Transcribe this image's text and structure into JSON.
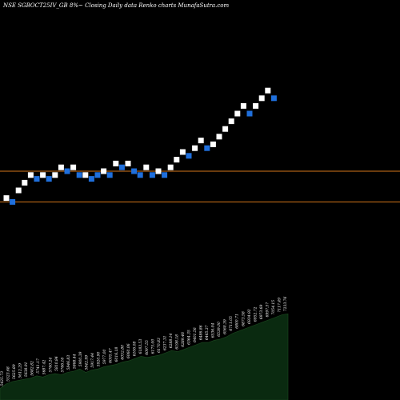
{
  "header": {
    "title": "NSE SGBOCT25IV_GB 8%~  Closing Daily data  Renko  charts MunafaSutra.com"
  },
  "colors": {
    "background": "#000000",
    "up_brick": "#ffffff",
    "down_brick": "#1f6fdc",
    "level_line": "#d4761a",
    "volume_fill": "#0a2a10"
  },
  "chart_data": [
    {
      "type": "renko",
      "title": "NSE SGBOCT25IV_GB 8%~ Closing Daily data Renko charts MunafaSutra.com",
      "ylim": [
        0,
        100
      ],
      "grid": false,
      "horizontal_levels": [
        57.5,
        49.5
      ],
      "bricks": [
        {
          "dir": "up",
          "y": 50.5
        },
        {
          "dir": "down",
          "y": 49.5
        },
        {
          "dir": "up",
          "y": 52.5
        },
        {
          "dir": "up",
          "y": 54.5
        },
        {
          "dir": "up",
          "y": 56.5
        },
        {
          "dir": "down",
          "y": 55.5
        },
        {
          "dir": "up",
          "y": 56.5
        },
        {
          "dir": "down",
          "y": 55.5
        },
        {
          "dir": "up",
          "y": 56.5
        },
        {
          "dir": "up",
          "y": 58.5
        },
        {
          "dir": "down",
          "y": 57.5
        },
        {
          "dir": "up",
          "y": 58.5
        },
        {
          "dir": "down",
          "y": 56.5
        },
        {
          "dir": "up",
          "y": 56.5
        },
        {
          "dir": "down",
          "y": 55.5
        },
        {
          "dir": "down",
          "y": 56.5
        },
        {
          "dir": "up",
          "y": 57.5
        },
        {
          "dir": "down",
          "y": 56.5
        },
        {
          "dir": "up",
          "y": 59.5
        },
        {
          "dir": "down",
          "y": 58.5
        },
        {
          "dir": "up",
          "y": 59.5
        },
        {
          "dir": "down",
          "y": 57.5
        },
        {
          "dir": "down",
          "y": 56.5
        },
        {
          "dir": "up",
          "y": 58.5
        },
        {
          "dir": "down",
          "y": 56.5
        },
        {
          "dir": "up",
          "y": 57.5
        },
        {
          "dir": "down",
          "y": 56.5
        },
        {
          "dir": "up",
          "y": 58.5
        },
        {
          "dir": "up",
          "y": 60.5
        },
        {
          "dir": "up",
          "y": 62.5
        },
        {
          "dir": "down",
          "y": 61.5
        },
        {
          "dir": "up",
          "y": 63.5
        },
        {
          "dir": "up",
          "y": 65.5
        },
        {
          "dir": "down",
          "y": 63.5
        },
        {
          "dir": "up",
          "y": 64.5
        },
        {
          "dir": "up",
          "y": 66.5
        },
        {
          "dir": "up",
          "y": 68.5
        },
        {
          "dir": "up",
          "y": 70.5
        },
        {
          "dir": "up",
          "y": 72.5
        },
        {
          "dir": "up",
          "y": 74.5
        },
        {
          "dir": "down",
          "y": 72.5
        },
        {
          "dir": "up",
          "y": 74.5
        },
        {
          "dir": "up",
          "y": 76.5
        },
        {
          "dir": "up",
          "y": 78.5
        },
        {
          "dir": "down",
          "y": 76.5
        }
      ],
      "volume_labels": [
        "5425.73",
        "5523.68",
        "5625.89",
        "5612.29",
        "5638.91",
        "5682.82",
        "5741.17",
        "5687.42",
        "5760.24",
        "5810.84",
        "5766.16",
        "5846.83",
        "5868.44",
        "5900.39",
        "5842.99",
        "5917.44",
        "5920.90",
        "5977.00",
        "6005.47",
        "6016.18",
        "6052.80",
        "6060.06",
        "6106.08",
        "6183.53",
        "6097.55",
        "6175.00",
        "6170.83",
        "6237.31",
        "6288.14",
        "6198.18",
        "6289.46",
        "6364.35",
        "6401.56",
        "6486.86",
        "6465.37",
        "6536.04",
        "6539.00",
        "6560.39",
        "6711.05",
        "6800.71",
        "6873.58",
        "6934.92",
        "6952.72",
        "6973.69",
        "6997.57",
        "7054.15",
        "7117.49",
        "7233.76"
      ],
      "volume_values": [
        10,
        14,
        16,
        17,
        18,
        19,
        21,
        20,
        22,
        23,
        22,
        24,
        25,
        27,
        24,
        26,
        27,
        29,
        30,
        31,
        33,
        34,
        36,
        38,
        37,
        38,
        39,
        41,
        43,
        42,
        44,
        46,
        48,
        50,
        50,
        52,
        53,
        55,
        58,
        60,
        62,
        64,
        66,
        68,
        70,
        72,
        74,
        75
      ]
    }
  ]
}
